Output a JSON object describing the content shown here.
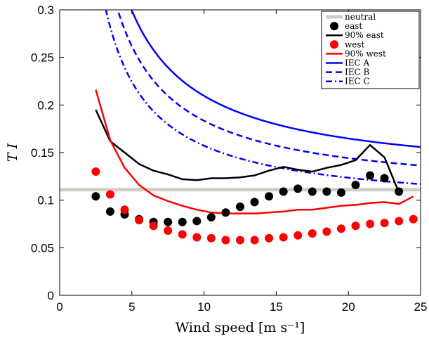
{
  "chart_data": {
    "type": "line",
    "xlabel": "Wind speed [m s⁻¹]",
    "ylabel": "T I",
    "xlim": [
      0,
      25
    ],
    "ylim": [
      0,
      0.3
    ],
    "x_ticks": [
      0,
      5,
      10,
      15,
      20,
      25
    ],
    "x_tick_labels": [
      "0",
      "5",
      "10",
      "15",
      "20",
      "25"
    ],
    "y_ticks": [
      0,
      0.05,
      0.1,
      0.15,
      0.2,
      0.25,
      0.3
    ],
    "y_tick_labels": [
      "0",
      "0.05",
      "0.1",
      "0.15",
      "0.2",
      "0.25",
      "0.3"
    ],
    "grid": false,
    "legend_position": "top-right",
    "series": [
      {
        "name": "neutral",
        "kind": "hline",
        "color": "#d0cec4",
        "y": 0.111
      },
      {
        "name": "east",
        "kind": "scatter",
        "color": "#000000",
        "x": [
          2.5,
          3.5,
          4.5,
          5.5,
          6.5,
          7.5,
          8.5,
          9.5,
          10.5,
          11.5,
          12.5,
          13.5,
          14.5,
          15.5,
          16.5,
          17.5,
          18.5,
          19.5,
          20.5,
          21.5,
          22.5,
          23.5
        ],
        "y": [
          0.104,
          0.088,
          0.085,
          0.08,
          0.077,
          0.077,
          0.077,
          0.078,
          0.082,
          0.087,
          0.093,
          0.098,
          0.104,
          0.109,
          0.112,
          0.109,
          0.109,
          0.108,
          0.116,
          0.126,
          0.123,
          0.109
        ]
      },
      {
        "name": "90% east",
        "kind": "line",
        "color": "#000000",
        "x": [
          2.5,
          3.5,
          4.5,
          5.5,
          6.5,
          7.5,
          8.5,
          9.5,
          10.5,
          11.5,
          12.5,
          13.5,
          14.5,
          15.5,
          16.5,
          17.5,
          18.5,
          19.5,
          20.5,
          21.5,
          22.5,
          23.5
        ],
        "y": [
          0.195,
          0.162,
          0.15,
          0.138,
          0.131,
          0.127,
          0.122,
          0.121,
          0.123,
          0.123,
          0.124,
          0.126,
          0.131,
          0.135,
          0.132,
          0.13,
          0.134,
          0.137,
          0.142,
          0.158,
          0.145,
          0.108
        ]
      },
      {
        "name": "west",
        "kind": "scatter",
        "color": "#ff0000",
        "x": [
          2.5,
          3.5,
          4.5,
          5.5,
          6.5,
          7.5,
          8.5,
          9.5,
          10.5,
          11.5,
          12.5,
          13.5,
          14.5,
          15.5,
          16.5,
          17.5,
          18.5,
          19.5,
          20.5,
          21.5,
          22.5,
          23.5,
          24.5
        ],
        "y": [
          0.13,
          0.106,
          0.09,
          0.079,
          0.073,
          0.068,
          0.064,
          0.061,
          0.06,
          0.058,
          0.058,
          0.058,
          0.06,
          0.061,
          0.063,
          0.065,
          0.067,
          0.07,
          0.073,
          0.075,
          0.076,
          0.078,
          0.08
        ]
      },
      {
        "name": "90% west",
        "kind": "line",
        "color": "#ff0000",
        "x": [
          2.5,
          3.5,
          4.5,
          5.5,
          6.5,
          7.5,
          8.5,
          9.5,
          10.5,
          11.5,
          12.5,
          13.5,
          14.5,
          15.5,
          16.5,
          17.5,
          18.5,
          19.5,
          20.5,
          21.5,
          22.5,
          23.5,
          24.5
        ],
        "y": [
          0.216,
          0.163,
          0.134,
          0.116,
          0.105,
          0.099,
          0.094,
          0.09,
          0.087,
          0.086,
          0.086,
          0.086,
          0.087,
          0.088,
          0.09,
          0.09,
          0.092,
          0.094,
          0.095,
          0.097,
          0.098,
          0.096,
          0.104
        ]
      },
      {
        "name": "IEC A",
        "kind": "curve",
        "dash": "solid",
        "color": "#0000ff",
        "Iref": 0.16,
        "x_range": [
          3,
          25
        ]
      },
      {
        "name": "IEC B",
        "kind": "curve",
        "dash": "dashed",
        "color": "#0000ff",
        "Iref": 0.14,
        "x_range": [
          2.5,
          25
        ]
      },
      {
        "name": "IEC C",
        "kind": "curve",
        "dash": "dashdot",
        "color": "#0000ff",
        "Iref": 0.12,
        "x_range": [
          2,
          25
        ]
      }
    ]
  }
}
